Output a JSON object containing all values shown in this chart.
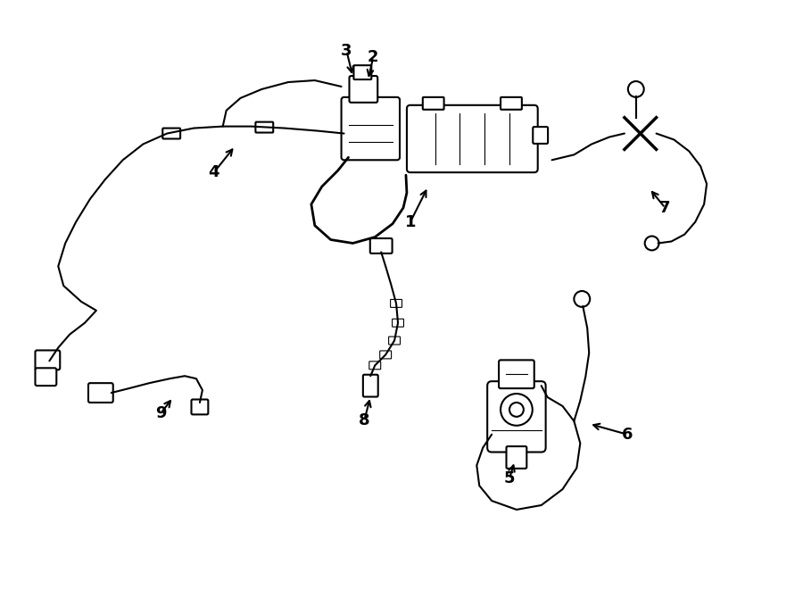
{
  "background_color": "#ffffff",
  "line_color": "#000000",
  "line_width": 1.5,
  "figsize": [
    9.0,
    6.61
  ],
  "dpi": 100
}
